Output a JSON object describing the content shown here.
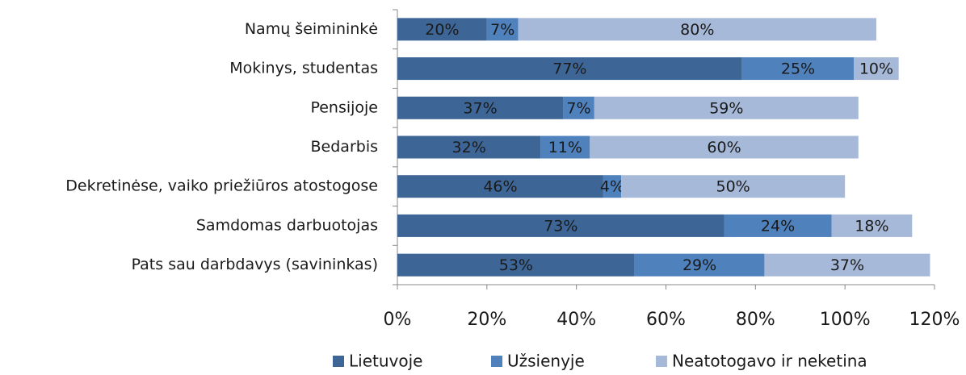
{
  "chart_data": {
    "type": "stacked_bar_horizontal",
    "categories": [
      "Namų šeimininkė",
      "Mokinys, studentas",
      "Pensijoje",
      "Bedarbis",
      "Dekretinėse, vaiko priežiūros atostogose",
      "Samdomas darbuotojas",
      "Pats sau darbdavys (savininkas)"
    ],
    "series": [
      {
        "name": "Lietuvoje",
        "color": "#3d6697",
        "values": [
          20,
          77,
          37,
          32,
          46,
          73,
          53
        ],
        "value_labels": [
          "20%",
          "77%",
          "37%",
          "32%",
          "46%",
          "73%",
          "53%"
        ]
      },
      {
        "name": "Užsienyje",
        "color": "#4f81bd",
        "values": [
          7,
          25,
          7,
          11,
          4,
          24,
          29
        ],
        "value_labels": [
          "7%",
          "25%",
          "7%",
          "11%",
          "4%",
          "24%",
          "29%"
        ]
      },
      {
        "name": "Neatotogavo ir neketina",
        "color": "#a7b9d8",
        "values": [
          80,
          10,
          59,
          60,
          50,
          18,
          37
        ],
        "value_labels": [
          "80%",
          "10%",
          "59%",
          "60%",
          "50%",
          "18%",
          "37%"
        ]
      }
    ],
    "xlim": [
      0,
      120
    ],
    "xticks": [
      {
        "value": 0,
        "label": "0%"
      },
      {
        "value": 20,
        "label": "20%"
      },
      {
        "value": 40,
        "label": "40%"
      },
      {
        "value": 60,
        "label": "60%"
      },
      {
        "value": 80,
        "label": "80%"
      },
      {
        "value": 100,
        "label": "100%"
      },
      {
        "value": 120,
        "label": "120%"
      }
    ],
    "legend": "bottom"
  }
}
